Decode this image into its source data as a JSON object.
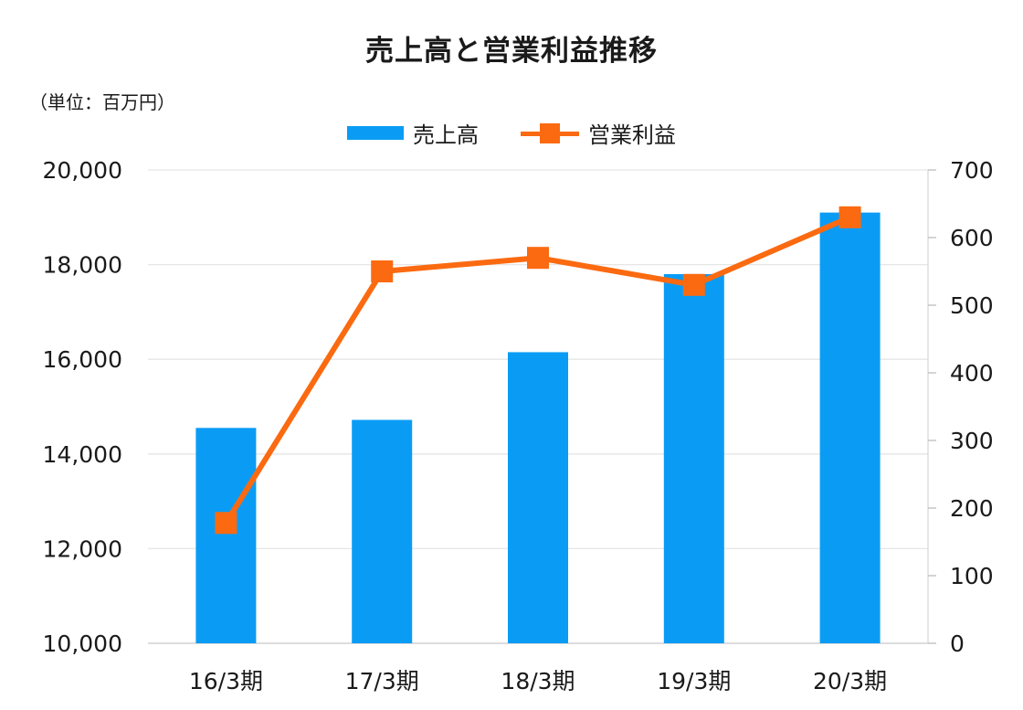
{
  "chart_data": {
    "type": "bar",
    "title": "売上高と営業利益推移",
    "unit_label": "（単位：百万円）",
    "categories": [
      "16/3期",
      "17/3期",
      "18/3期",
      "19/3期",
      "20/3期"
    ],
    "series": [
      {
        "name": "売上高",
        "type": "bar",
        "axis": "left",
        "values": [
          14550,
          14720,
          16150,
          17800,
          19100
        ],
        "color": "#0a9cf5"
      },
      {
        "name": "営業利益",
        "type": "line",
        "axis": "right",
        "values": [
          178,
          550,
          570,
          530,
          630
        ],
        "color": "#fb6a10"
      }
    ],
    "y_left": {
      "range": [
        10000,
        20000
      ],
      "ticks": [
        10000,
        12000,
        14000,
        16000,
        18000,
        20000
      ],
      "tick_labels": [
        "10,000",
        "12,000",
        "14,000",
        "16,000",
        "18,000",
        "20,000"
      ]
    },
    "y_right": {
      "range": [
        0,
        700
      ],
      "ticks": [
        0,
        100,
        200,
        300,
        400,
        500,
        600,
        700
      ],
      "tick_labels": [
        "0",
        "100",
        "200",
        "300",
        "400",
        "500",
        "600",
        "700"
      ]
    },
    "grid": true,
    "legend_position": "top-center"
  }
}
